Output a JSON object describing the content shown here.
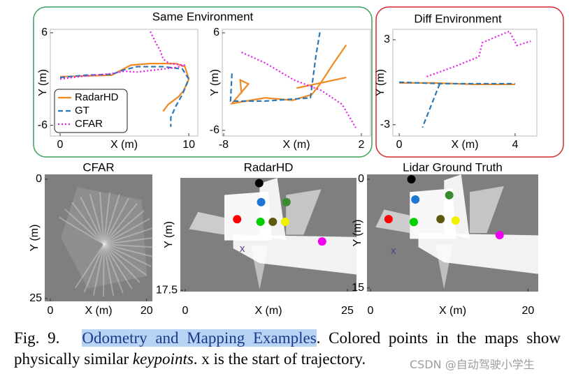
{
  "groups": [
    {
      "title": "Same Environment"
    },
    {
      "title": "Diff Environment"
    }
  ],
  "chart_data": [
    {
      "type": "line",
      "xlabel": "X (m)",
      "ylabel": "Y (m)",
      "xlim": [
        -0.76,
        10.7
      ],
      "ylim": [
        -7.4,
        6.45
      ],
      "xticks": [
        0,
        10
      ],
      "yticks": [
        -6,
        6
      ],
      "legend": "lower left",
      "series": [
        {
          "name": "RadarHD",
          "color": "#f08a24",
          "style": "solid",
          "x": [
            0,
            2,
            4,
            4.8,
            5.5,
            7,
            9,
            9.7,
            10,
            9.6,
            9.2,
            8.8,
            8.4,
            8.0
          ],
          "values": [
            0.3,
            0.4,
            0.5,
            1.2,
            1.8,
            2,
            2,
            1.6,
            0,
            -1.5,
            -2.3,
            -2.8,
            -3.3,
            -4.2
          ]
        },
        {
          "name": "GT",
          "color": "#2a78b8",
          "style": "dashed",
          "x": [
            0,
            2,
            4,
            5,
            6,
            8,
            9.5,
            10,
            9.5,
            9,
            8.6,
            8.6
          ],
          "values": [
            0.2,
            0.5,
            0.6,
            1.2,
            1.6,
            1.6,
            1.3,
            0,
            -2,
            -3.5,
            -5,
            -6.2
          ]
        },
        {
          "name": "CFAR",
          "color": "#e81ce8",
          "style": "dotted",
          "x": [
            0,
            2,
            4,
            5,
            6,
            7,
            8,
            9,
            9.7,
            8.5,
            8.0,
            7.8,
            7.5,
            7.2,
            7.0
          ],
          "values": [
            0,
            0.4,
            0.7,
            1.0,
            0.9,
            1.1,
            1.3,
            1.5,
            1.8,
            2.0,
            2.6,
            3.6,
            4.5,
            5.5,
            6.2
          ]
        }
      ]
    },
    {
      "type": "line",
      "xlabel": "X (m)",
      "ylabel": "Y (m)",
      "xlim": [
        -8.1,
        2.66
      ],
      "ylim": [
        -6.7,
        6.43
      ],
      "xticks": [
        -8,
        2
      ],
      "yticks": [
        -6,
        6
      ],
      "series": [
        {
          "name": "RadarHD",
          "color": "#f08a24",
          "style": "solid",
          "x": [
            -6.7,
            -6.8,
            -6.2,
            -7.4,
            -5,
            -3,
            -1.6,
            -1,
            0,
            0.9,
            0.9,
            -2.7,
            0.9
          ],
          "values": [
            -1.5,
            0.2,
            -0.3,
            -2.7,
            -2,
            -2.3,
            -1.6,
            -0.3,
            2.3,
            4.5,
            null,
            -0.8,
            0.5
          ]
        },
        {
          "name": "GT",
          "color": "#2a78b8",
          "style": "dashed",
          "x": [
            -7.4,
            -7.5,
            -5,
            -1.7,
            -1.5,
            -1.3,
            -1.0
          ],
          "values": [
            1.0,
            -2.4,
            -2.4,
            -2.0,
            0.6,
            3.2,
            6.2
          ]
        },
        {
          "name": "CFAR",
          "color": "#e81ce8",
          "style": "dotted",
          "x": [
            -6.7,
            -5,
            -2.9,
            -0.9,
            0.6,
            1.6
          ],
          "values": [
            3.6,
            2.3,
            0.2,
            -1.1,
            -2.8,
            -5.7
          ]
        }
      ]
    },
    {
      "type": "line",
      "xlabel": "X (m)",
      "ylabel": "Y (m)",
      "xlim": [
        -0.22,
        4.75
      ],
      "ylim": [
        -3.8,
        3.74
      ],
      "xticks": [
        0,
        4
      ],
      "yticks": [
        -3,
        3
      ],
      "series": [
        {
          "name": "RadarHD",
          "color": "#f08a24",
          "style": "solid",
          "x": [
            0,
            1.2,
            2.6,
            4
          ],
          "values": [
            -0.05,
            -0.05,
            -0.15,
            -0.15
          ]
        },
        {
          "name": "GT",
          "color": "#2a78b8",
          "style": "dashed",
          "x": [
            0,
            1.4,
            4,
            1.4,
            1.4,
            0.8
          ],
          "values": [
            0,
            -0.1,
            -0.1,
            null,
            -0.1,
            -3.2
          ]
        },
        {
          "name": "CFAR",
          "color": "#e81ce8",
          "style": "dotted",
          "x": [
            0.95,
            1.9,
            2.75,
            2.87,
            3.8,
            4.06,
            4.54
          ],
          "values": [
            0.4,
            1.1,
            1.8,
            2.8,
            3.6,
            2.6,
            2.9
          ]
        }
      ]
    },
    {
      "type": "map",
      "title": "CFAR",
      "xlabel": "X (m)",
      "ylabel": "Y (m)",
      "invert_y": true,
      "xlim": [
        -1.16,
        21.2
      ],
      "ylim": [
        -1,
        25.6
      ],
      "xticks": [
        0,
        20
      ],
      "yticks": [
        0,
        25
      ]
    },
    {
      "type": "map",
      "title": "RadarHD",
      "xlabel": "X (m)",
      "ylabel": "Y (m)",
      "invert_y": true,
      "xlim": [
        -0.75,
        26.4
      ],
      "ylim": [
        -0.22,
        17.7
      ],
      "xticks": [
        0,
        25
      ],
      "yticks": [
        17.5
      ],
      "x": [
        11.4,
        11.7,
        15.6,
        8.0,
        11.6,
        13.5,
        15.4,
        21.1
      ],
      "values": [
        0.6,
        3.6,
        3.6,
        6.3,
        6.7,
        6.7,
        6.7,
        9.8
      ],
      "colors": [
        "#000000",
        "#1f77d4",
        "#3a8a30",
        "#ff0000",
        "#00d000",
        "#5a5a10",
        "#f0f000",
        "#f000f0"
      ],
      "annotation": {
        "text": "x",
        "x": 8.8,
        "y": 11.0,
        "color": "#5a3a8a"
      }
    },
    {
      "type": "map",
      "title": "Lidar Ground Truth",
      "xlabel": "X (m)",
      "ylabel": "Y (m)",
      "invert_y": true,
      "xlim": [
        -0.44,
        21.3
      ],
      "ylim": [
        -0.67,
        15.5
      ],
      "xticks": [
        0,
        20
      ],
      "yticks": [
        0,
        15
      ],
      "x": [
        5.2,
        5.7,
        10.0,
        2.3,
        5.5,
        8.9,
        10.8,
        16.4
      ],
      "values": [
        0,
        2.8,
        2.2,
        5.5,
        5.9,
        5.5,
        5.7,
        7.7
      ],
      "colors": [
        "#000000",
        "#1f77d4",
        "#3a8a30",
        "#ff0000",
        "#00d000",
        "#5a5a10",
        "#f0f000",
        "#f000f0"
      ],
      "annotation": {
        "text": "x",
        "x": 2.9,
        "y": 9.9,
        "color": "#5a3a8a"
      }
    }
  ],
  "caption": {
    "label": "Fig. 9.",
    "title": "Odometry and Mapping Examples",
    "text1": ". Colored points in the maps show physically similar ",
    "emphasis": "keypoints",
    "text2": ". x is the start of trajectory."
  },
  "watermark": "CSDN @自动驾驶小学生"
}
